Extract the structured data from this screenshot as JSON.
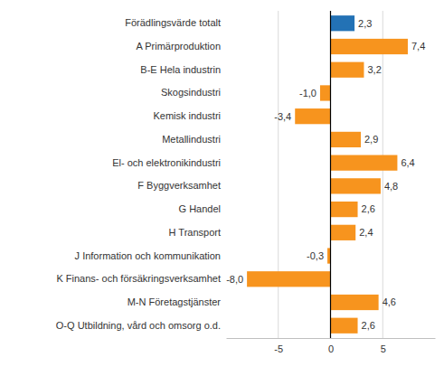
{
  "chart_data": {
    "type": "bar",
    "orientation": "horizontal",
    "categories": [
      "Förädlingsvärde totalt",
      "A Primärproduktion",
      "B-E Hela industrin",
      "Skogsindustri",
      "Kemisk industri",
      "Metallindustri",
      "El- och elektronikindustri",
      "F Byggverksamhet",
      "G Handel",
      "H Transport",
      "J Information och kommunikation",
      "K Finans- och försäkringsverksamhet",
      "M-N Företagstjänster",
      "O-Q Utbildning, vård och omsorg o.d."
    ],
    "values": [
      2.3,
      7.4,
      3.2,
      -1.0,
      -3.4,
      2.9,
      6.4,
      4.8,
      2.6,
      2.4,
      -0.3,
      -8.0,
      4.6,
      2.6
    ],
    "value_labels": [
      "2,3",
      "7,4",
      "3,2",
      "-1,0",
      "-3,4",
      "2,9",
      "6,4",
      "4,8",
      "2,6",
      "2,4",
      "-0,3",
      "-8,0",
      "4,6",
      "2,6"
    ],
    "colors": [
      "#2372b5",
      "#f7941e",
      "#f7941e",
      "#f7941e",
      "#f7941e",
      "#f7941e",
      "#f7941e",
      "#f7941e",
      "#f7941e",
      "#f7941e",
      "#f7941e",
      "#f7941e",
      "#f7941e",
      "#f7941e"
    ],
    "xlim": [
      -10,
      10
    ],
    "xticks": [
      -5,
      0,
      5
    ],
    "grid": true,
    "data_labels": true
  }
}
